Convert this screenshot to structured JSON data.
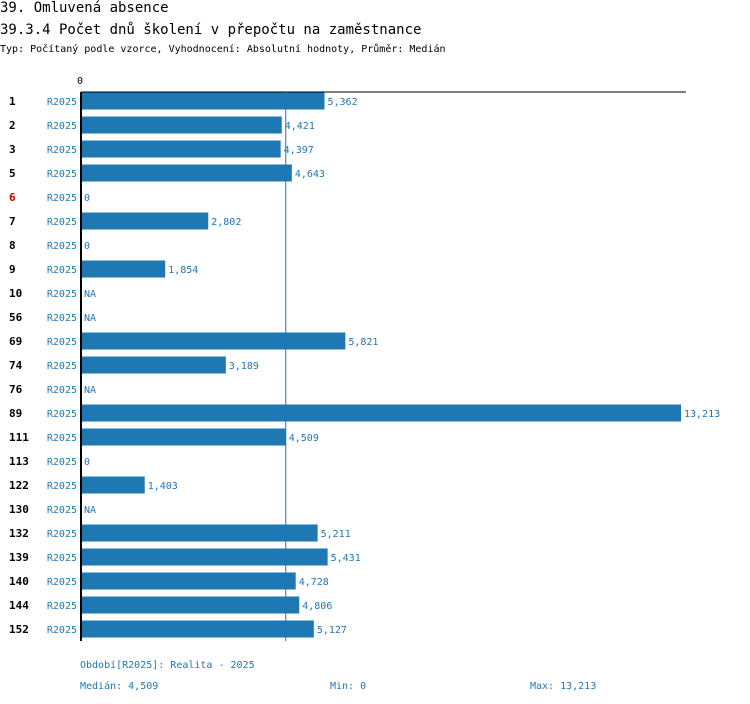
{
  "section_title": "39. Omluvená absence",
  "chart_title": "39.3.4 Počet dnů školení v přepočtu na zaměstnance",
  "subtitle": "Typ: Počítaný podle vzorce, Vyhodnocení: Absolutní hodnoty, Průměr: Medián",
  "colors": {
    "bar": "#1f77b4",
    "label": "#1f77b4",
    "highlight_id": "#cc0000",
    "text": "#000000"
  },
  "chart_data": {
    "type": "bar",
    "orientation": "horizontal",
    "axis_zero_label": "0",
    "period_label": "R2025",
    "xlim": [
      0,
      13213
    ],
    "median_line": 4509,
    "rows": [
      {
        "id": "1",
        "period": "R2025",
        "value": 5362,
        "label": "5,362",
        "highlight": false
      },
      {
        "id": "2",
        "period": "R2025",
        "value": 4421,
        "label": "4,421",
        "highlight": false
      },
      {
        "id": "3",
        "period": "R2025",
        "value": 4397,
        "label": "4,397",
        "highlight": false
      },
      {
        "id": "5",
        "period": "R2025",
        "value": 4643,
        "label": "4,643",
        "highlight": false
      },
      {
        "id": "6",
        "period": "R2025",
        "value": 0,
        "label": "0",
        "highlight": true
      },
      {
        "id": "7",
        "period": "R2025",
        "value": 2802,
        "label": "2,802",
        "highlight": false
      },
      {
        "id": "8",
        "period": "R2025",
        "value": 0,
        "label": "0",
        "highlight": false
      },
      {
        "id": "9",
        "period": "R2025",
        "value": 1854,
        "label": "1,854",
        "highlight": false
      },
      {
        "id": "10",
        "period": "R2025",
        "value": null,
        "label": "NA",
        "highlight": false
      },
      {
        "id": "56",
        "period": "R2025",
        "value": null,
        "label": "NA",
        "highlight": false
      },
      {
        "id": "69",
        "period": "R2025",
        "value": 5821,
        "label": "5,821",
        "highlight": false
      },
      {
        "id": "74",
        "period": "R2025",
        "value": 3189,
        "label": "3,189",
        "highlight": false
      },
      {
        "id": "76",
        "period": "R2025",
        "value": null,
        "label": "NA",
        "highlight": false
      },
      {
        "id": "89",
        "period": "R2025",
        "value": 13213,
        "label": "13,213",
        "highlight": false
      },
      {
        "id": "111",
        "period": "R2025",
        "value": 4509,
        "label": "4,509",
        "highlight": false
      },
      {
        "id": "113",
        "period": "R2025",
        "value": 0,
        "label": "0",
        "highlight": false
      },
      {
        "id": "122",
        "period": "R2025",
        "value": 1403,
        "label": "1,403",
        "highlight": false
      },
      {
        "id": "130",
        "period": "R2025",
        "value": null,
        "label": "NA",
        "highlight": false
      },
      {
        "id": "132",
        "period": "R2025",
        "value": 5211,
        "label": "5,211",
        "highlight": false
      },
      {
        "id": "139",
        "period": "R2025",
        "value": 5431,
        "label": "5,431",
        "highlight": false
      },
      {
        "id": "140",
        "period": "R2025",
        "value": 4728,
        "label": "4,728",
        "highlight": false
      },
      {
        "id": "144",
        "period": "R2025",
        "value": 4806,
        "label": "4,806",
        "highlight": false
      },
      {
        "id": "152",
        "period": "R2025",
        "value": 5127,
        "label": "5,127",
        "highlight": false
      }
    ]
  },
  "footer": {
    "period_note": "Období[R2025]: Realita - 2025",
    "median": "Medián: 4,509",
    "min": "Min: 0",
    "max": "Max: 13,213"
  }
}
